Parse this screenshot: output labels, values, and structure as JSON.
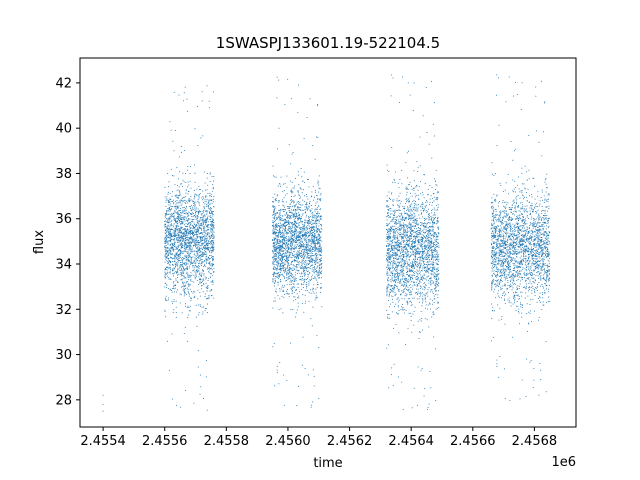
{
  "chart_data": {
    "type": "scatter",
    "title": "1SWASPJ133601.19-522104.5",
    "xlabel": "time",
    "ylabel": "flux",
    "x_offset_label": "1e6",
    "xlim": [
      2455325,
      2456935
    ],
    "ylim": [
      26.8,
      43.1
    ],
    "xticks": [
      2455400,
      2455600,
      2455800,
      2456000,
      2456200,
      2456400,
      2456600,
      2456800
    ],
    "xtick_labels": [
      "2.4554",
      "2.4556",
      "2.4558",
      "2.4560",
      "2.4562",
      "2.4564",
      "2.4566",
      "2.4568"
    ],
    "yticks": [
      28,
      30,
      32,
      34,
      36,
      38,
      40,
      42
    ],
    "ytick_labels": [
      "28",
      "30",
      "32",
      "34",
      "36",
      "38",
      "40",
      "42"
    ],
    "grid": false,
    "marker_color": "#1f77b4",
    "isolated_points": [
      {
        "x": 2455400,
        "y": 28.2
      },
      {
        "x": 2455400,
        "y": 27.8
      },
      {
        "x": 2455400,
        "y": 27.5
      }
    ],
    "clusters": [
      {
        "x_start": 2455600,
        "x_end": 2455760,
        "y_center": 35.0,
        "y_spread": 1.2,
        "y_min": 27.5,
        "y_max": 42.2
      },
      {
        "x_start": 2455950,
        "x_end": 2456110,
        "y_center": 34.9,
        "y_spread": 1.1,
        "y_min": 27.5,
        "y_max": 42.3
      },
      {
        "x_start": 2456320,
        "x_end": 2456490,
        "y_center": 34.6,
        "y_spread": 1.3,
        "y_min": 27.4,
        "y_max": 42.4
      },
      {
        "x_start": 2456660,
        "x_end": 2456850,
        "y_center": 34.7,
        "y_spread": 1.2,
        "y_min": 27.8,
        "y_max": 42.4
      }
    ]
  }
}
